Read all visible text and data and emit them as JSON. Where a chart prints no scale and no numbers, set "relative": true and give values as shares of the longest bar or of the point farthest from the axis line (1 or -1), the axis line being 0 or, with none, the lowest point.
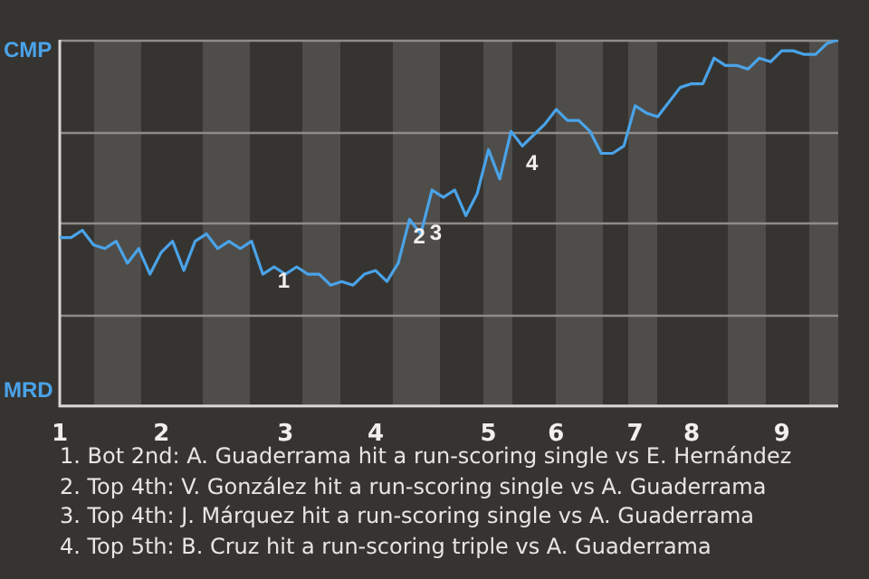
{
  "chart_data": {
    "type": "line",
    "relative": true,
    "categories": [
      "1",
      null,
      null,
      null,
      null,
      null,
      null,
      null,
      null,
      "2",
      null,
      null,
      null,
      null,
      null,
      null,
      null,
      null,
      null,
      null,
      "3",
      null,
      null,
      null,
      null,
      null,
      null,
      null,
      "4",
      null,
      null,
      null,
      null,
      null,
      null,
      null,
      null,
      null,
      "5",
      null,
      null,
      null,
      null,
      null,
      "6",
      null,
      null,
      null,
      null,
      null,
      null,
      "7",
      null,
      null,
      null,
      null,
      "8",
      null,
      null,
      null,
      null,
      null,
      null,
      null,
      "9",
      null,
      null,
      null,
      null,
      null
    ],
    "series": [
      {
        "color": "#4aa3e8",
        "values": [
          0.46,
          0.46,
          0.48,
          0.44,
          0.43,
          0.45,
          0.39,
          0.43,
          0.36,
          0.42,
          0.45,
          0.37,
          0.45,
          0.47,
          0.43,
          0.45,
          0.43,
          0.45,
          0.36,
          0.38,
          0.36,
          0.38,
          0.36,
          0.36,
          0.33,
          0.34,
          0.33,
          0.36,
          0.37,
          0.34,
          0.39,
          0.51,
          0.47,
          0.59,
          0.57,
          0.59,
          0.52,
          0.58,
          0.7,
          0.62,
          0.75,
          0.71,
          0.74,
          0.77,
          0.81,
          0.78,
          0.78,
          0.75,
          0.69,
          0.69,
          0.71,
          0.82,
          0.8,
          0.79,
          0.83,
          0.87,
          0.88,
          0.88,
          0.95,
          0.93,
          0.93,
          0.92,
          0.95,
          0.94,
          0.97,
          0.97,
          0.96,
          0.96,
          0.99,
          1
        ]
      }
    ],
    "grid": "y",
    "marker": "none",
    "line_style": "solid",
    "annotations": [
      "CMP",
      "MRD",
      "1",
      "2",
      "3",
      "4",
      "1. Bot 2nd: A. Guaderrama hit a run-scoring single vs E. Hernández",
      "2. Top 4th: V. González hit a run-scoring single vs A. Guaderrama",
      "3. Top 4th: J. Márquez hit a run-scoring single vs A. Guaderrama",
      "4. Top 5th: B. Cruz hit a run-scoring triple vs A. Guaderrama"
    ]
  }
}
